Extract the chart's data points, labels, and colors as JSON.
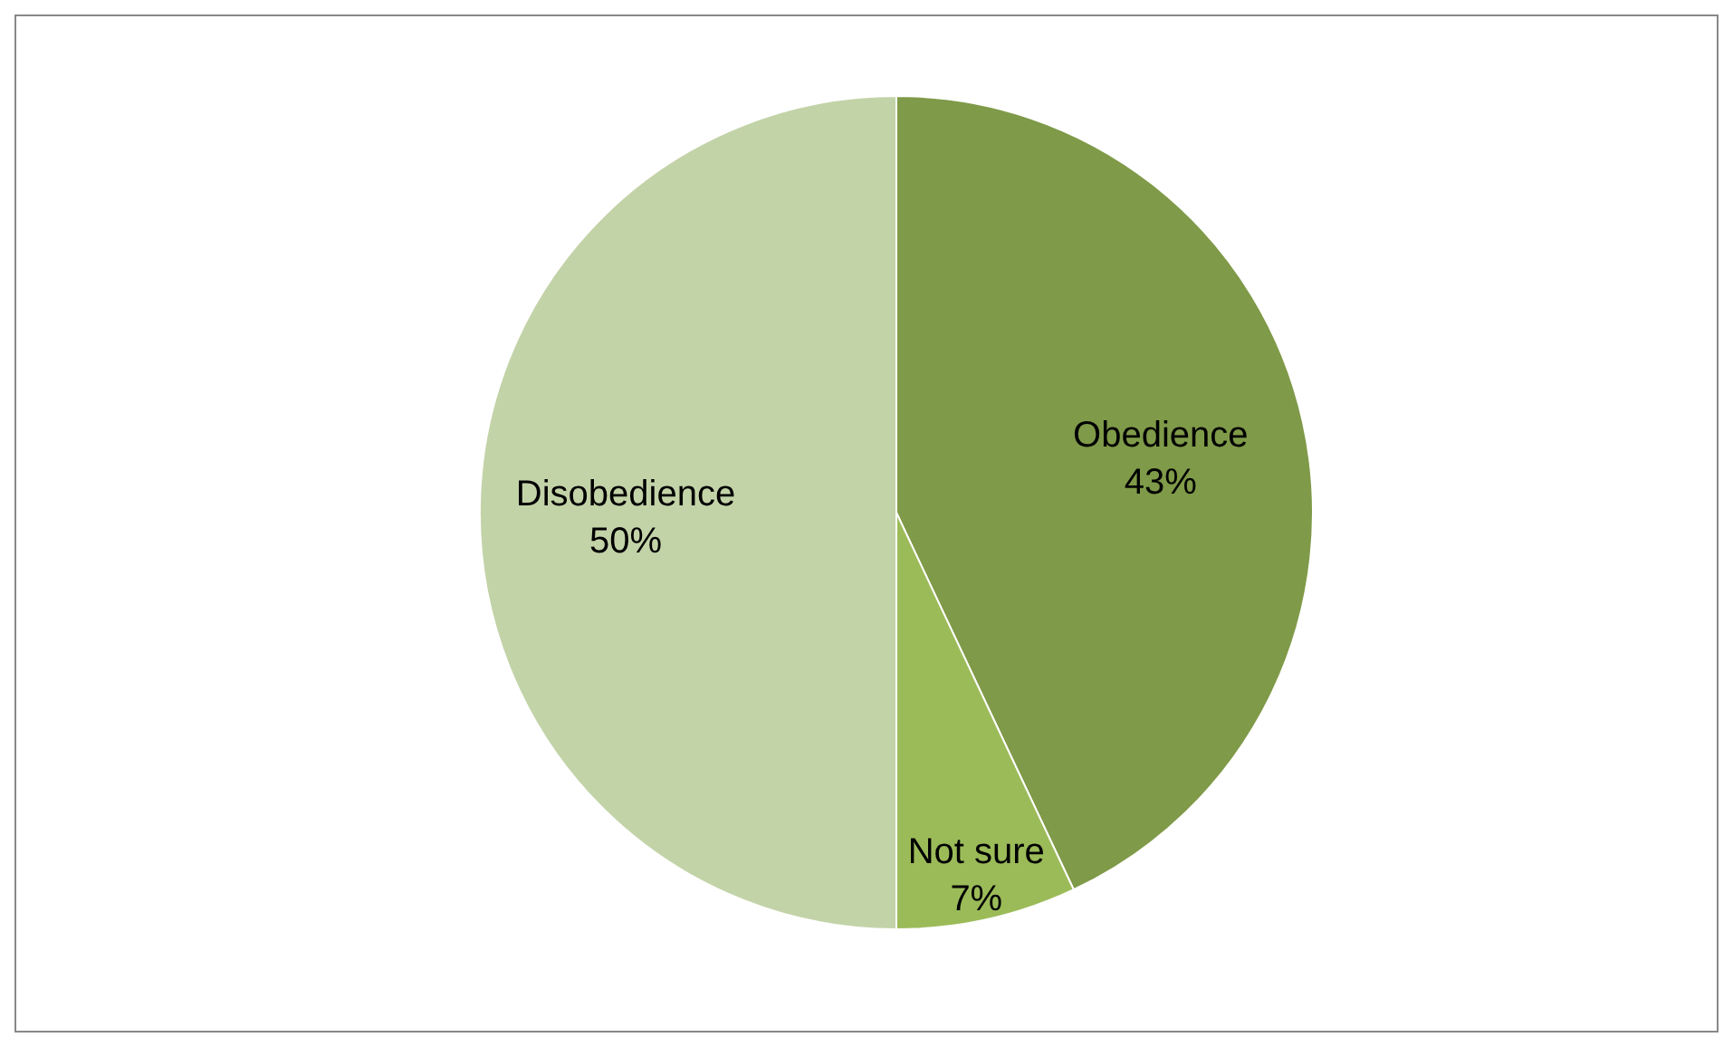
{
  "chart_data": {
    "type": "pie",
    "categories": [
      "Obedience",
      "Not sure",
      "Disobedience"
    ],
    "values": [
      43,
      7,
      50
    ],
    "colors": [
      "#7f9a48",
      "#9bbb59",
      "#c3d3a8"
    ],
    "value_labels": [
      "43%",
      "7%",
      "50%"
    ]
  }
}
